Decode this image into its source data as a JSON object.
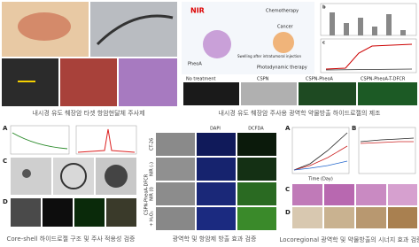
{
  "top_left": {
    "caption": "내시경 유도 췌장암 타겟 항암현달체 주사제"
  },
  "top_right": {
    "caption": "내시경 유도 췌장암 주사용 광역학 약물방출 하이드로젤의 제조",
    "schematic": [
      "NIR",
      "Chemotherapy",
      "Cancer",
      "Photodynamic therapy",
      "PheoA",
      "Swelling after intratumoral injection"
    ],
    "groups": [
      "No treatment",
      "CSPN",
      "CSPN-PheoA",
      "CSPN-PheoA-T-DFCR"
    ],
    "chart_labels": [
      "b",
      "c"
    ]
  },
  "bottom_left": {
    "caption": "Core-shell 하이드로젤 구조 및 주사 적용성 검증",
    "panels": [
      "A",
      "C",
      "D"
    ]
  },
  "bottom_middle": {
    "caption": "광역학 및 항암제 방출 효과 검증",
    "columns": [
      "DAPI",
      "DCFDA"
    ],
    "rows": [
      "NIR (-)",
      "NIR (I)",
      "+ H₂O₂"
    ],
    "cell_line": "CT-26",
    "group": "CSPN-PheoA-DFCR"
  },
  "bottom_right": {
    "caption": "Locoregional 광역학 및 약물방출의 시너지 효과 검증",
    "panels": [
      "A",
      "B",
      "C",
      "D"
    ],
    "x_label": "Time (Day)"
  }
}
